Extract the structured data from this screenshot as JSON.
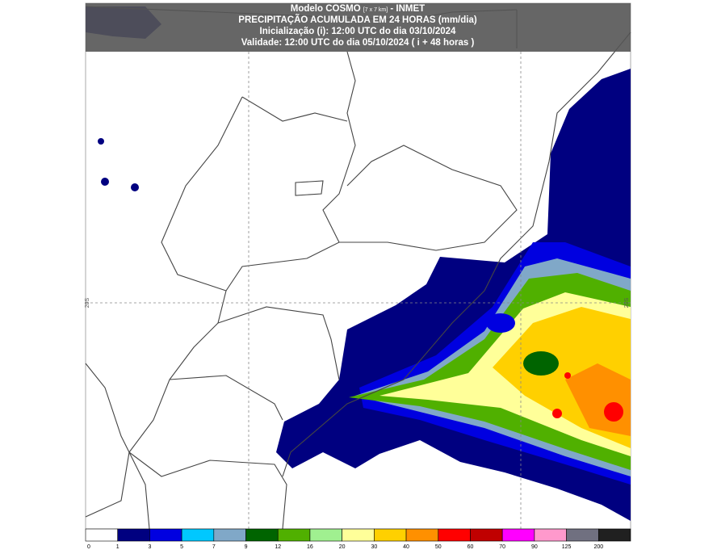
{
  "header": {
    "model": "Modelo COSMO",
    "resolution": "[7 x 7 km]",
    "source": "- INMET",
    "title": "PRECIPITAÇÃO ACUMULADA EM 24 HORAS (mm/dia)",
    "init": "Inicialização (i): 12:00 UTC do dia 03/10/2024",
    "valid": "Validade: 12:00 UTC do dia 05/10/2024 ( i + 48 horas )"
  },
  "grid_labels": {
    "left": "20S",
    "right": "20S"
  },
  "legend": {
    "colors": [
      "#ffffff",
      "#000080",
      "#0000e0",
      "#00c8ff",
      "#80a8c8",
      "#006400",
      "#50b000",
      "#a0f090",
      "#ffff99",
      "#ffd000",
      "#ff9000",
      "#ff0000",
      "#c00000",
      "#ff00ff",
      "#ff99cc",
      "#707080",
      "#202020"
    ],
    "labels": [
      "0",
      "1",
      "3",
      "5",
      "7",
      "9",
      "12",
      "16",
      "20",
      "30",
      "40",
      "50",
      "60",
      "70",
      "90",
      "125",
      "200"
    ]
  }
}
